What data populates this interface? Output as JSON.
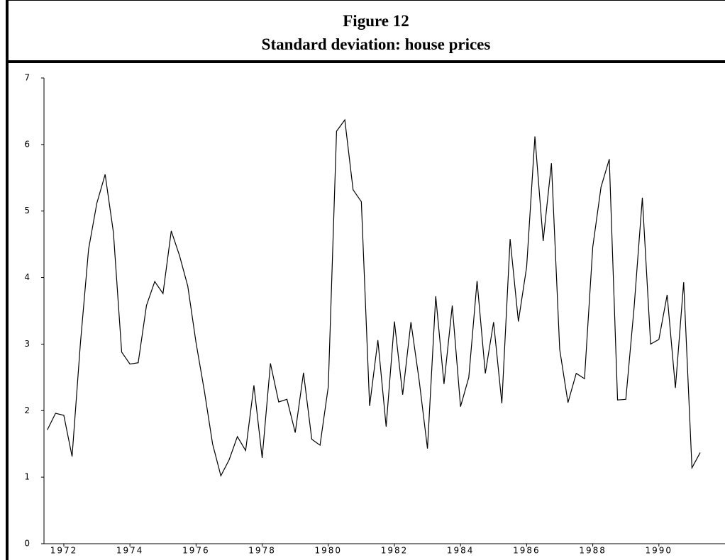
{
  "chart_data": {
    "type": "line",
    "title": "Figure 12",
    "subtitle": "Standard deviation: house prices",
    "x": [
      1971.5,
      1971.75,
      1972,
      1972.25,
      1972.5,
      1972.75,
      1973,
      1973.25,
      1973.5,
      1973.75,
      1974,
      1974.25,
      1974.5,
      1974.75,
      1975,
      1975.25,
      1975.5,
      1975.75,
      1976,
      1976.25,
      1976.5,
      1976.75,
      1977,
      1977.25,
      1977.5,
      1977.75,
      1978,
      1978.25,
      1978.5,
      1978.75,
      1979,
      1979.25,
      1979.5,
      1979.75,
      1980,
      1980.25,
      1980.5,
      1980.75,
      1981,
      1981.25,
      1981.5,
      1981.75,
      1982,
      1982.25,
      1982.5,
      1982.75,
      1983,
      1983.25,
      1983.5,
      1983.75,
      1984,
      1984.25,
      1984.5,
      1984.75,
      1985,
      1985.25,
      1985.5,
      1985.75,
      1986,
      1986.25,
      1986.5,
      1986.75,
      1987,
      1987.25,
      1987.5,
      1987.75,
      1988,
      1988.25,
      1988.5,
      1988.75,
      1989,
      1989.25,
      1989.5,
      1989.75,
      1990,
      1990.25,
      1990.5,
      1990.75,
      1991,
      1991.25
    ],
    "series": [
      {
        "color": "#000000",
        "values": [
          1.71,
          1.96,
          1.93,
          1.31,
          3.0,
          4.43,
          5.12,
          5.55,
          4.68,
          2.88,
          2.7,
          2.72,
          3.58,
          3.94,
          3.76,
          4.7,
          4.33,
          3.87,
          3.02,
          2.3,
          1.5,
          1.02,
          1.26,
          1.61,
          1.4,
          2.38,
          1.29,
          2.71,
          2.13,
          2.17,
          1.67,
          2.57,
          1.57,
          1.48,
          2.36,
          6.2,
          6.37,
          5.32,
          5.14,
          2.07,
          3.06,
          1.76,
          3.34,
          2.24,
          3.33,
          2.45,
          1.43,
          3.72,
          2.4,
          3.58,
          2.06,
          2.5,
          3.95,
          2.56,
          3.33,
          2.11,
          4.58,
          3.34,
          4.16,
          6.12,
          4.55,
          5.72,
          2.92,
          2.12,
          2.56,
          2.48,
          4.46,
          5.36,
          5.78,
          2.16,
          2.17,
          3.55,
          5.2,
          3.0,
          3.07,
          3.74,
          2.34,
          3.93,
          1.14,
          1.37
        ]
      }
    ],
    "xlim": [
      1971.4,
      1992
    ],
    "xticks": [
      1972,
      1974,
      1976,
      1978,
      1980,
      1982,
      1984,
      1986,
      1988,
      1990
    ],
    "ylim": [
      0,
      7
    ],
    "yticks": [
      0,
      1,
      2,
      3,
      4,
      5,
      6,
      7
    ],
    "grid": false
  }
}
